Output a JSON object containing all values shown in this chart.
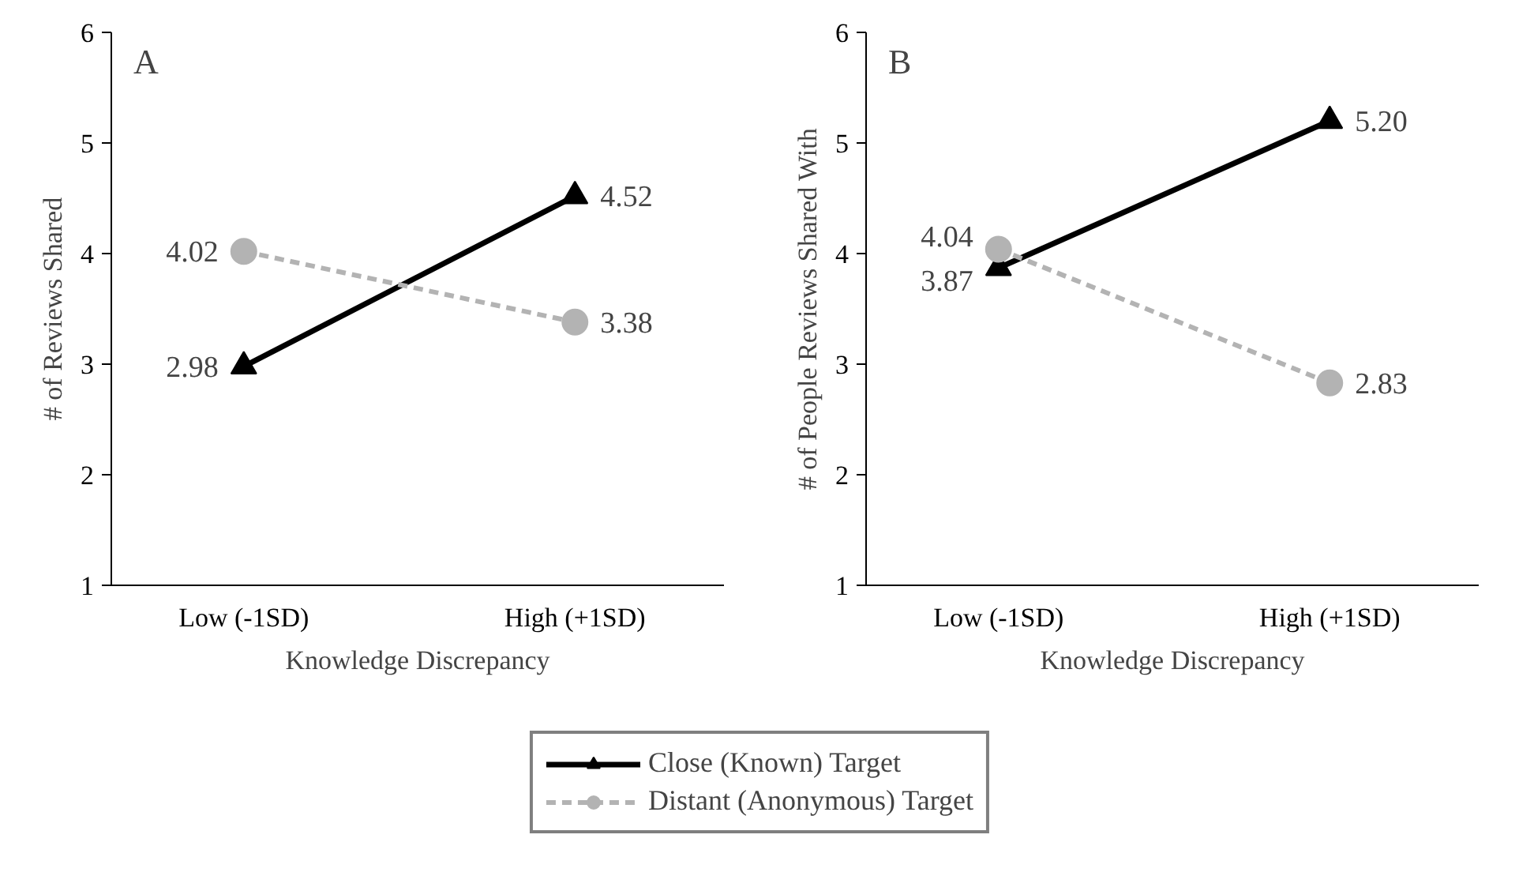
{
  "chart_data": [
    {
      "type": "line",
      "title": "A",
      "xlabel": "Knowledge Discrepancy",
      "ylabel": "# of Reviews Shared",
      "categories": [
        "Low (-1SD)",
        "High (+1SD)"
      ],
      "ylim": [
        1,
        6
      ],
      "yticks": [
        1,
        2,
        3,
        4,
        5,
        6
      ],
      "grid": false,
      "legend": "bottom",
      "series": [
        {
          "name": "Close (Known) Target",
          "color": "#000000",
          "marker": "triangle",
          "line_style": "solid",
          "values": [
            2.98,
            4.52
          ],
          "value_labels": [
            "2.98",
            "4.52"
          ]
        },
        {
          "name": "Distant (Anonymous) Target",
          "color": "#b3b3b3",
          "marker": "circle",
          "line_style": "dashed",
          "values": [
            4.02,
            3.38
          ],
          "value_labels": [
            "4.02",
            "3.38"
          ]
        }
      ]
    },
    {
      "type": "line",
      "title": "B",
      "xlabel": "Knowledge Discrepancy",
      "ylabel": "# of People Reviews Shared With",
      "categories": [
        "Low (-1SD)",
        "High (+1SD)"
      ],
      "ylim": [
        1,
        6
      ],
      "yticks": [
        1,
        2,
        3,
        4,
        5,
        6
      ],
      "grid": false,
      "series": [
        {
          "color": "#000000",
          "marker": "triangle",
          "line_style": "solid",
          "values": [
            3.87,
            5.2
          ],
          "value_labels": [
            "3.87",
            "5.20"
          ]
        },
        {
          "color": "#b3b3b3",
          "marker": "circle",
          "line_style": "dashed",
          "values": [
            4.04,
            2.83
          ],
          "value_labels": [
            "4.04",
            "2.83"
          ]
        }
      ]
    }
  ]
}
